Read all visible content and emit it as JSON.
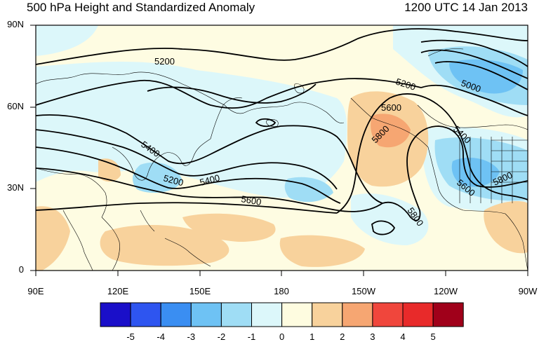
{
  "title_left": "500 hPa Height and Standardized Anomaly",
  "title_right": "1200 UTC 14 Jan 2013",
  "lat_labels": [
    "90N",
    "60N",
    "30N",
    "0"
  ],
  "lon_labels": [
    "90E",
    "120E",
    "150E",
    "180",
    "150W",
    "120W",
    "90W"
  ],
  "contour_labels": [
    "5200",
    "5200",
    "5000",
    "5400",
    "5600",
    "5800",
    "5200",
    "5400",
    "5600",
    "5800",
    "5400",
    "5600",
    "5800"
  ],
  "colorbar": {
    "labels": [
      "-5",
      "-4",
      "-3",
      "-2",
      "-1",
      "0",
      "1",
      "2",
      "3",
      "4",
      "5"
    ],
    "colors": [
      "#1a0fc9",
      "#2e55f0",
      "#3a8ef2",
      "#6ec2f4",
      "#9fddf5",
      "#dcf7fa",
      "#fefce0",
      "#f8d29c",
      "#f6a672",
      "#f0463c",
      "#e82a2a",
      "#a0001a"
    ]
  },
  "map_colors": {
    "neutral": "#fefce2",
    "neg1": "#dcf7fa",
    "neg2": "#9fddf5",
    "neg3": "#6ec2f4",
    "pos1": "#f8d29c",
    "pos2": "#f6a672"
  }
}
